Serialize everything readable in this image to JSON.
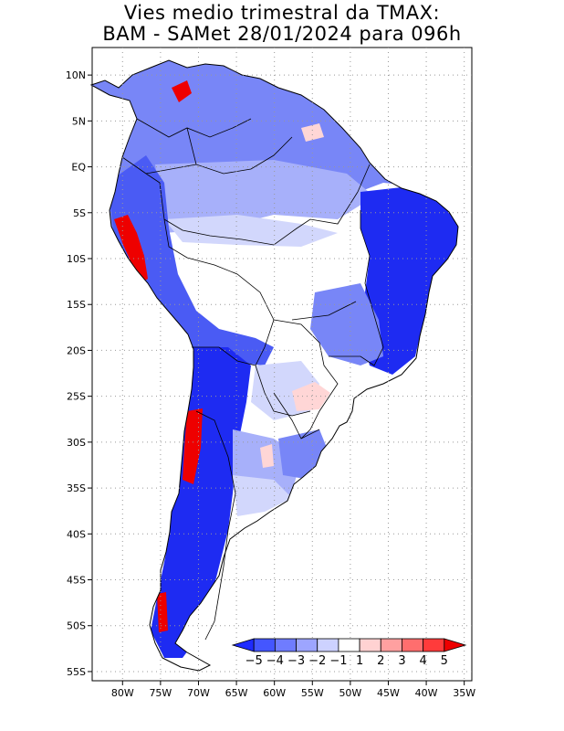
{
  "title": {
    "line1": "Vies medio trimestral da TMAX:",
    "line2": "BAM - SAMet 28/01/2024  para 096h"
  },
  "map": {
    "region": "South America",
    "lon_range": [
      -84,
      -34
    ],
    "lat_range": [
      -56,
      13
    ],
    "lon_ticks": [
      "80W",
      "75W",
      "70W",
      "65W",
      "60W",
      "55W",
      "50W",
      "45W",
      "40W",
      "35W"
    ],
    "lat_ticks": [
      "10N",
      "5N",
      "EQ",
      "5S",
      "10S",
      "15S",
      "20S",
      "25S",
      "30S",
      "35S",
      "40S",
      "45S",
      "50S",
      "55S"
    ],
    "grid": "dotted",
    "ocean_color": "#ffffff",
    "border_color": "#000000"
  },
  "colorbar": {
    "labels": [
      "-5",
      "-4",
      "-3",
      "-2",
      "-1",
      "1",
      "2",
      "3",
      "4",
      "5"
    ],
    "colors": [
      "#1f2bff",
      "#4456ff",
      "#6f7cff",
      "#9da5ff",
      "#cdd2ff",
      "#ffffff",
      "#ffd2d2",
      "#ffa0a0",
      "#ff6e6e",
      "#ff3b3b",
      "#ee0000"
    ]
  },
  "bias_palette": {
    "strong_neg": "#1e2bf2",
    "neg4": "#4a5bf4",
    "neg3": "#7886f7",
    "neg2": "#a7b0fa",
    "neg1": "#d2d7fc",
    "neutral": "#ffffff",
    "pos1": "#ffd6d6",
    "pos3": "#ff8080",
    "pos5": "#ee0000"
  }
}
